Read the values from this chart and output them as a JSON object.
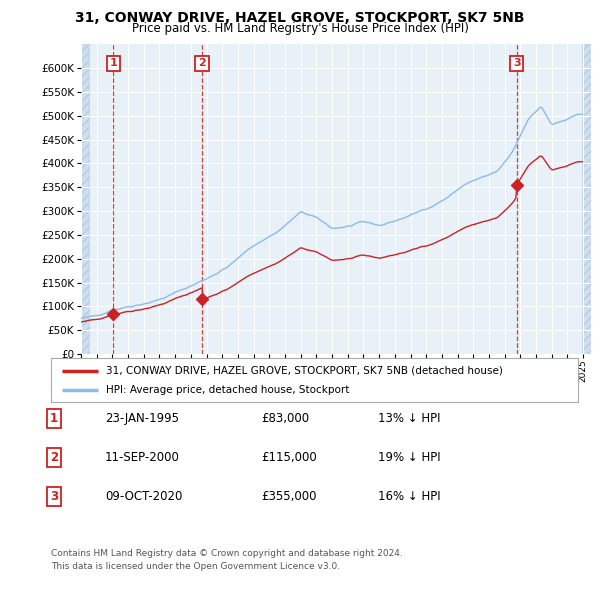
{
  "title": "31, CONWAY DRIVE, HAZEL GROVE, STOCKPORT, SK7 5NB",
  "subtitle": "Price paid vs. HM Land Registry's House Price Index (HPI)",
  "legend_line1": "31, CONWAY DRIVE, HAZEL GROVE, STOCKPORT, SK7 5NB (detached house)",
  "legend_line2": "HPI: Average price, detached house, Stockport",
  "footer1": "Contains HM Land Registry data © Crown copyright and database right 2024.",
  "footer2": "This data is licensed under the Open Government Licence v3.0.",
  "transactions": [
    {
      "num": "1",
      "date": "23-JAN-1995",
      "price": "£83,000",
      "hpi": "13% ↓ HPI"
    },
    {
      "num": "2",
      "date": "11-SEP-2000",
      "price": "£115,000",
      "hpi": "19% ↓ HPI"
    },
    {
      "num": "3",
      "date": "09-OCT-2020",
      "price": "£355,000",
      "hpi": "16% ↓ HPI"
    }
  ],
  "sale_year_floats": [
    1995.07,
    2000.71,
    2020.77
  ],
  "sale_prices": [
    83000,
    115000,
    355000
  ],
  "hpi_color": "#88BBEE",
  "price_color": "#CC2222",
  "marker_color": "#CC2222",
  "ylim_max": 650000,
  "yticks": [
    0,
    50000,
    100000,
    150000,
    200000,
    250000,
    300000,
    350000,
    400000,
    450000,
    500000,
    550000,
    600000
  ],
  "xlim": [
    1993.0,
    2025.5
  ],
  "background_color": "#FFFFFF",
  "plot_bg_color": "#E8F0F8",
  "grid_color": "#FFFFFF"
}
